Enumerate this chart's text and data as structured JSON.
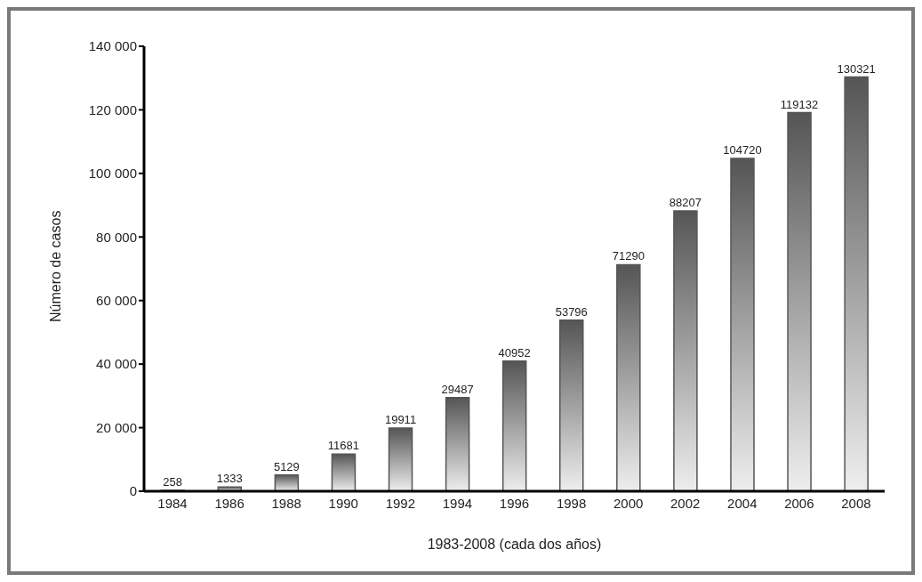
{
  "chart_data": {
    "type": "bar",
    "xlabel": "1983-2008 (cada dos años)",
    "ylabel": "Número de casos",
    "categories": [
      "1984",
      "1986",
      "1988",
      "1990",
      "1992",
      "1994",
      "1996",
      "1998",
      "2000",
      "2002",
      "2004",
      "2006",
      "2008"
    ],
    "values": [
      258,
      1333,
      5129,
      11681,
      19911,
      29487,
      40952,
      53796,
      71290,
      88207,
      104720,
      119132,
      130321
    ],
    "color": "#555555",
    "ylim": [
      0,
      140000
    ],
    "yticks": [
      0,
      {
        "value": 20000,
        "label": "20 000"
      },
      {
        "value": 40000,
        "label": "40 000"
      },
      {
        "value": 60000,
        "label": "60 000"
      },
      {
        "value": 80000,
        "label": "80 000"
      },
      {
        "value": 100000,
        "label": "100 000"
      },
      {
        "value": 120000,
        "label": "120 000"
      },
      {
        "value": 140000,
        "label": "140 000"
      }
    ],
    "grid": false,
    "legend": false,
    "data_labels": true
  }
}
